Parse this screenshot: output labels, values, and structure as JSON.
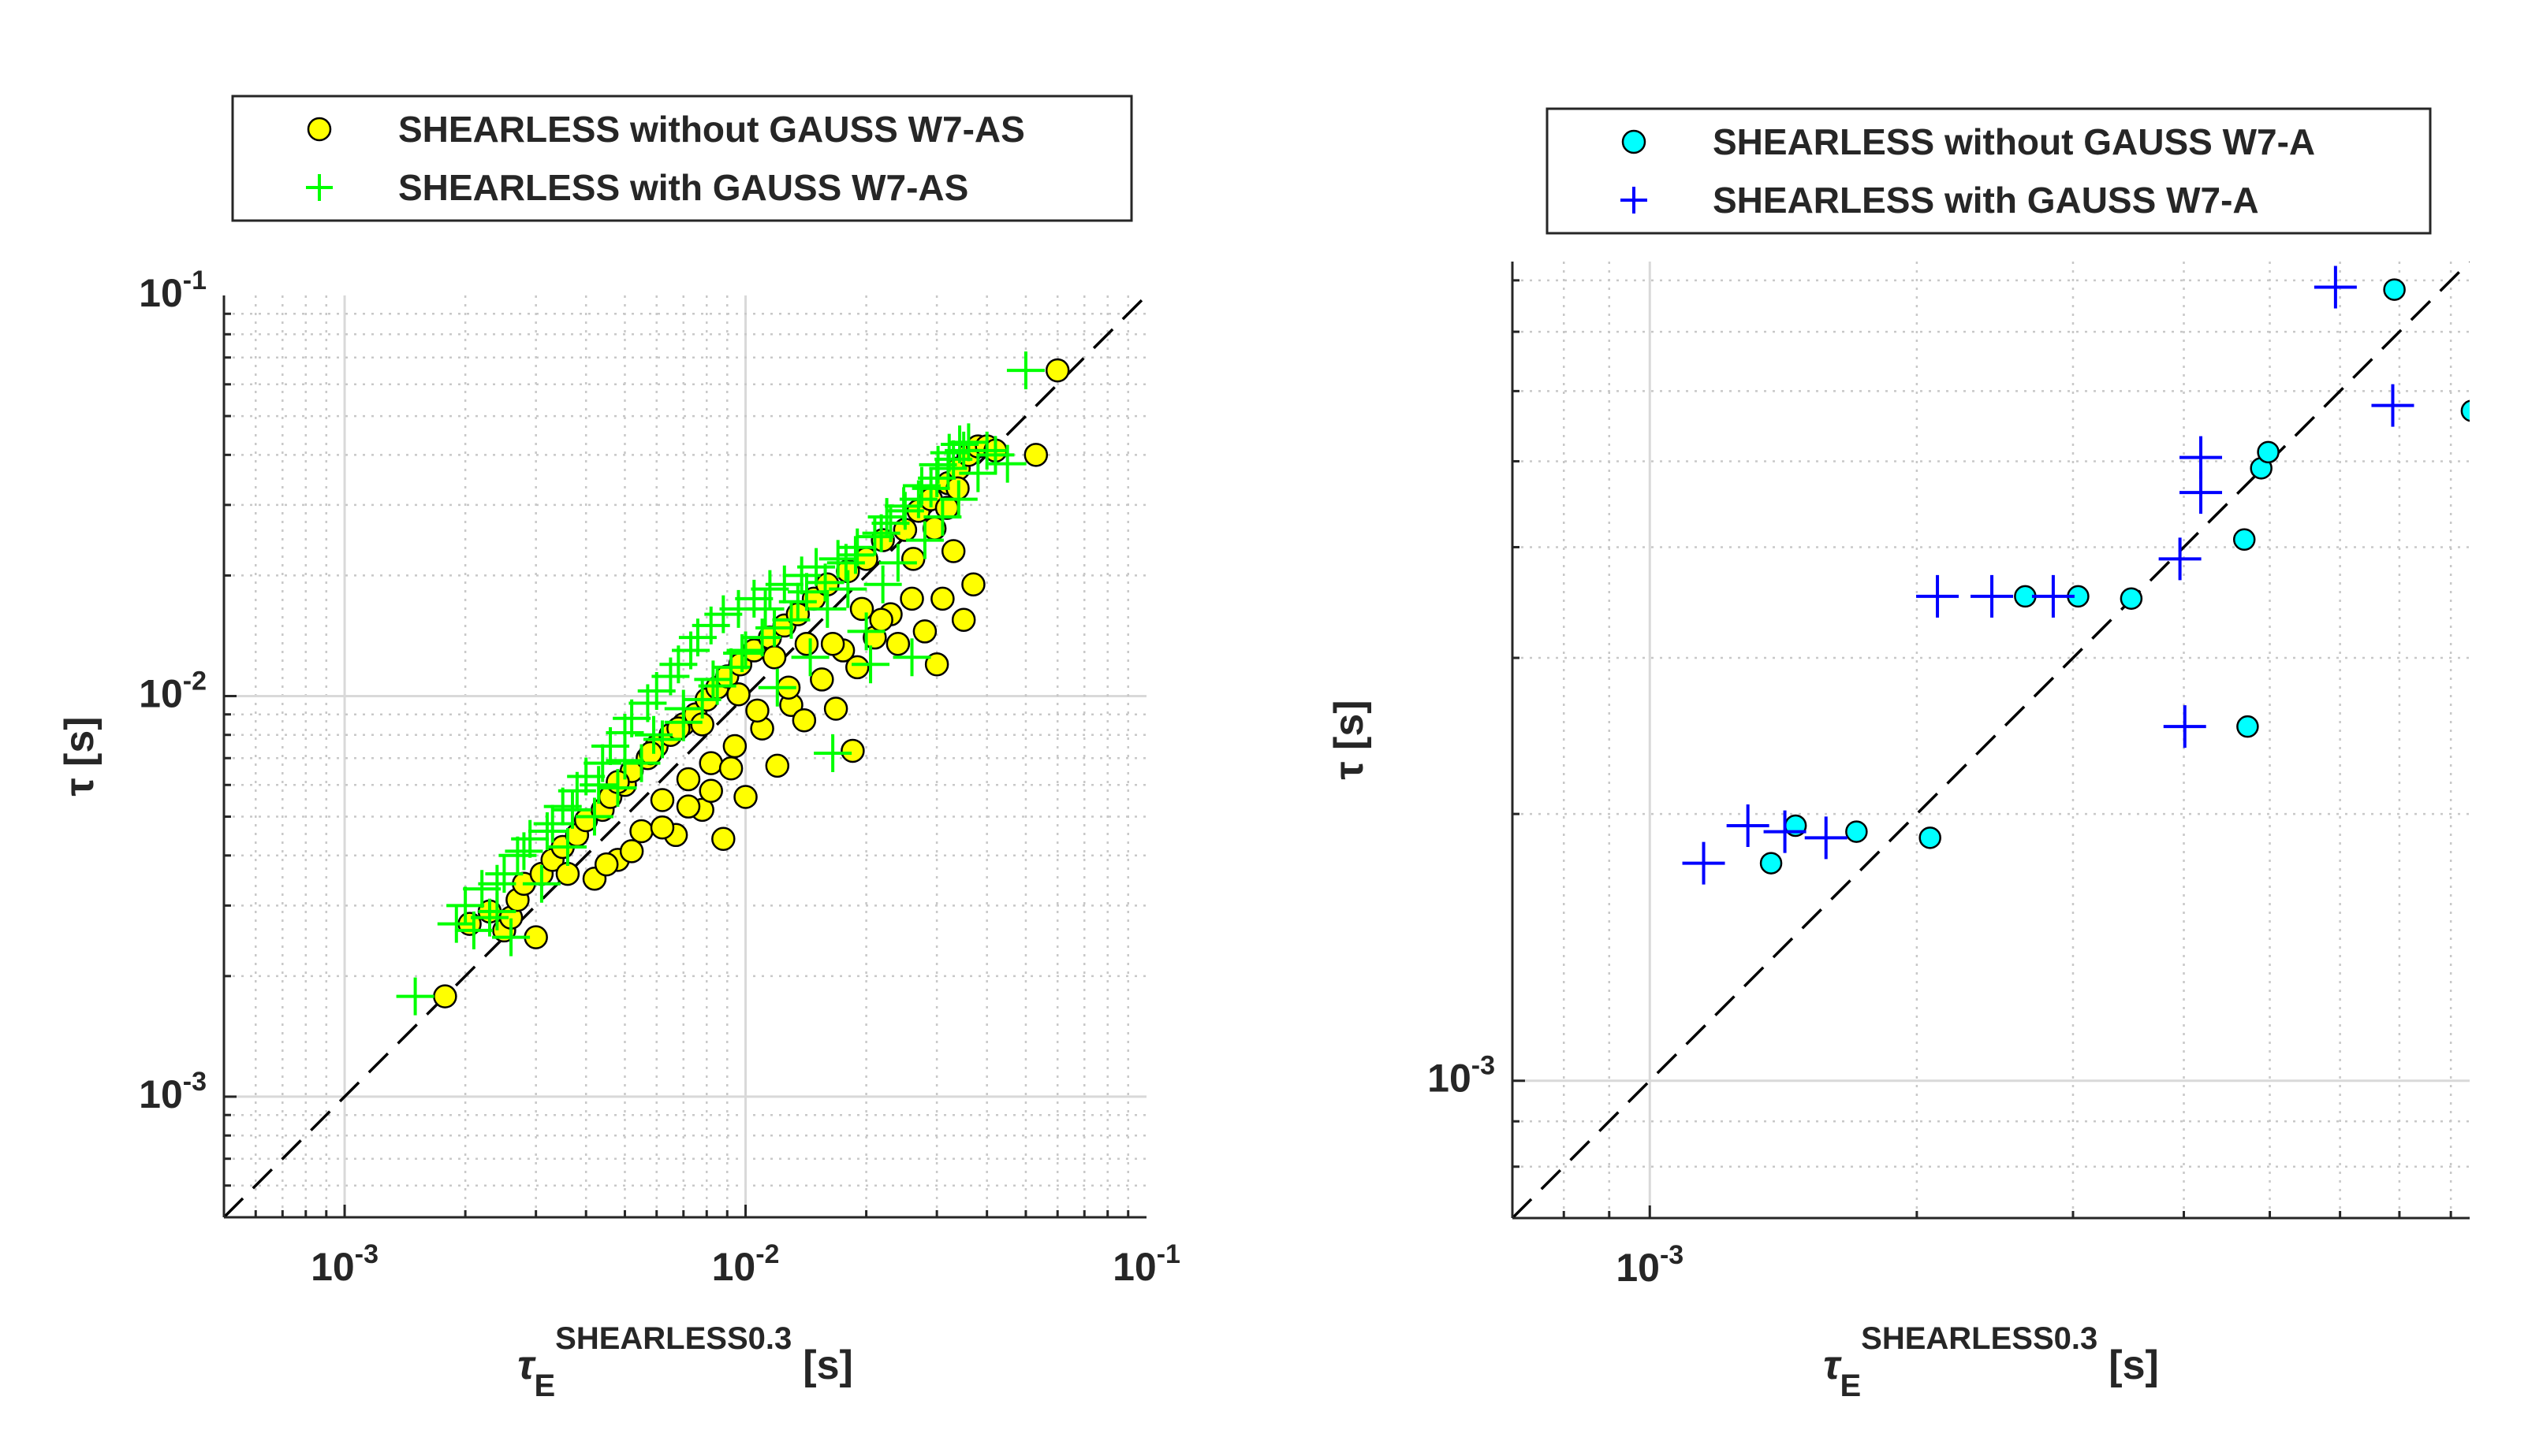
{
  "colors": {
    "yellow_marker": "#ffff00",
    "green_marker": "#00ff00",
    "cyan_marker": "#00ffff",
    "blue_marker": "#0000ff",
    "axis": "#262626",
    "identity_line": "#000000"
  },
  "chart_data": [
    {
      "type": "scatter",
      "scale": "log-log",
      "xlabel": "τ",
      "xlabel_sub": "E",
      "xlabel_sup": "SHEARLESS0.3",
      "xlabel_unit": "[s]",
      "ylabel": "τ [s]",
      "xlim": [
        0.0005,
        0.1
      ],
      "ylim": [
        0.0005,
        0.1
      ],
      "x_ticks": [
        0.001,
        0.01,
        0.1
      ],
      "y_ticks": [
        0.001,
        0.01,
        0.1
      ],
      "x_tick_labels": [
        {
          "base": "10",
          "exp": "-3"
        },
        {
          "base": "10",
          "exp": "-2"
        },
        {
          "base": "10",
          "exp": "-1"
        }
      ],
      "y_tick_labels": [
        {
          "base": "10",
          "exp": "-3"
        },
        {
          "base": "10",
          "exp": "-2"
        },
        {
          "base": "10",
          "exp": "-1"
        }
      ],
      "grid": true,
      "minor_grid": true,
      "identity_line": true,
      "legend_position": "above-top",
      "series": [
        {
          "name": "SHEARLESS without GAUSS W7-AS",
          "marker": "circle",
          "color": "#ffff00",
          "points": [
            [
              0.00178,
              0.00178
            ],
            [
              0.00205,
              0.0027
            ],
            [
              0.0023,
              0.0029
            ],
            [
              0.0025,
              0.0026
            ],
            [
              0.0026,
              0.0028
            ],
            [
              0.0027,
              0.0031
            ],
            [
              0.0028,
              0.0034
            ],
            [
              0.003,
              0.0025
            ],
            [
              0.0031,
              0.0036
            ],
            [
              0.0033,
              0.0039
            ],
            [
              0.0035,
              0.0042
            ],
            [
              0.0036,
              0.0036
            ],
            [
              0.0038,
              0.0045
            ],
            [
              0.004,
              0.0049
            ],
            [
              0.0042,
              0.0035
            ],
            [
              0.0044,
              0.0052
            ],
            [
              0.0046,
              0.0056
            ],
            [
              0.0048,
              0.0039
            ],
            [
              0.005,
              0.006
            ],
            [
              0.0052,
              0.0065
            ],
            [
              0.0055,
              0.0046
            ],
            [
              0.0057,
              0.007
            ],
            [
              0.006,
              0.0075
            ],
            [
              0.0062,
              0.0055
            ],
            [
              0.0065,
              0.008
            ],
            [
              0.0067,
              0.0045
            ],
            [
              0.007,
              0.0085
            ],
            [
              0.0072,
              0.0062
            ],
            [
              0.0075,
              0.009
            ],
            [
              0.0078,
              0.0052
            ],
            [
              0.008,
              0.0098
            ],
            [
              0.0082,
              0.0068
            ],
            [
              0.0085,
              0.0105
            ],
            [
              0.0088,
              0.0044
            ],
            [
              0.009,
              0.0112
            ],
            [
              0.0094,
              0.0075
            ],
            [
              0.0097,
              0.012
            ],
            [
              0.01,
              0.0056
            ],
            [
              0.0105,
              0.013
            ],
            [
              0.011,
              0.0083
            ],
            [
              0.0115,
              0.014
            ],
            [
              0.012,
              0.0067
            ],
            [
              0.0125,
              0.015
            ],
            [
              0.013,
              0.0095
            ],
            [
              0.0135,
              0.016
            ],
            [
              0.014,
              0.0087
            ],
            [
              0.0148,
              0.0175
            ],
            [
              0.0155,
              0.011
            ],
            [
              0.016,
              0.019
            ],
            [
              0.0168,
              0.0093
            ],
            [
              0.0175,
              0.013
            ],
            [
              0.018,
              0.0205
            ],
            [
              0.0185,
              0.0073
            ],
            [
              0.019,
              0.0118
            ],
            [
              0.02,
              0.022
            ],
            [
              0.021,
              0.014
            ],
            [
              0.022,
              0.0245
            ],
            [
              0.023,
              0.016
            ],
            [
              0.024,
              0.0135
            ],
            [
              0.025,
              0.026
            ],
            [
              0.026,
              0.0175
            ],
            [
              0.027,
              0.029
            ],
            [
              0.028,
              0.0145
            ],
            [
              0.029,
              0.031
            ],
            [
              0.03,
              0.012
            ],
            [
              0.031,
              0.0175
            ],
            [
              0.032,
              0.034
            ],
            [
              0.033,
              0.023
            ],
            [
              0.034,
              0.037
            ],
            [
              0.035,
              0.0155
            ],
            [
              0.036,
              0.04
            ],
            [
              0.037,
              0.019
            ],
            [
              0.038,
              0.042
            ],
            [
              0.04,
              0.042
            ],
            [
              0.042,
              0.041
            ],
            [
              0.053,
              0.04
            ],
            [
              0.06,
              0.065
            ],
            [
              0.0218,
              0.0155
            ],
            [
              0.0165,
              0.0135
            ],
            [
              0.0128,
              0.0105
            ],
            [
              0.0107,
              0.0092
            ],
            [
              0.0092,
              0.0066
            ],
            [
              0.0082,
              0.0058
            ],
            [
              0.0072,
              0.0053
            ],
            [
              0.0062,
              0.0047
            ],
            [
              0.0052,
              0.0041
            ],
            [
              0.0045,
              0.0038
            ],
            [
              0.0048,
              0.0061
            ],
            [
              0.0058,
              0.0072
            ],
            [
              0.0068,
              0.0083
            ],
            [
              0.0078,
              0.0085
            ],
            [
              0.0096,
              0.0101
            ],
            [
              0.0118,
              0.0125
            ],
            [
              0.0142,
              0.0135
            ],
            [
              0.0195,
              0.0165
            ],
            [
              0.0262,
              0.022
            ],
            [
              0.0296,
              0.0262
            ],
            [
              0.0318,
              0.0295
            ],
            [
              0.0338,
              0.033
            ]
          ]
        },
        {
          "name": "SHEARLESS with GAUSS W7-AS",
          "marker": "plus",
          "color": "#00ff00",
          "points": [
            [
              0.0015,
              0.00178
            ],
            [
              0.0019,
              0.0027
            ],
            [
              0.002,
              0.003
            ],
            [
              0.0021,
              0.0026
            ],
            [
              0.0022,
              0.0033
            ],
            [
              0.0024,
              0.0029
            ],
            [
              0.0025,
              0.0036
            ],
            [
              0.0026,
              0.0025
            ],
            [
              0.0027,
              0.004
            ],
            [
              0.0029,
              0.0044
            ],
            [
              0.0031,
              0.0034
            ],
            [
              0.0033,
              0.0048
            ],
            [
              0.0035,
              0.0053
            ],
            [
              0.0036,
              0.0042
            ],
            [
              0.0038,
              0.0058
            ],
            [
              0.004,
              0.0063
            ],
            [
              0.0042,
              0.005
            ],
            [
              0.0044,
              0.0068
            ],
            [
              0.0046,
              0.0075
            ],
            [
              0.0048,
              0.0059
            ],
            [
              0.005,
              0.0081
            ],
            [
              0.0052,
              0.0088
            ],
            [
              0.0055,
              0.0068
            ],
            [
              0.0057,
              0.0096
            ],
            [
              0.006,
              0.0103
            ],
            [
              0.0062,
              0.0078
            ],
            [
              0.0065,
              0.0112
            ],
            [
              0.0068,
              0.012
            ],
            [
              0.007,
              0.0086
            ],
            [
              0.0073,
              0.013
            ],
            [
              0.0076,
              0.014
            ],
            [
              0.0078,
              0.0098
            ],
            [
              0.0082,
              0.015
            ],
            [
              0.0085,
              0.0106
            ],
            [
              0.0088,
              0.016
            ],
            [
              0.0092,
              0.0118
            ],
            [
              0.0096,
              0.0165
            ],
            [
              0.01,
              0.013
            ],
            [
              0.0105,
              0.0175
            ],
            [
              0.011,
              0.014
            ],
            [
              0.0115,
              0.0185
            ],
            [
              0.012,
              0.0105
            ],
            [
              0.0125,
              0.019
            ],
            [
              0.013,
              0.0155
            ],
            [
              0.0138,
              0.02
            ],
            [
              0.0145,
              0.0125
            ],
            [
              0.015,
              0.021
            ],
            [
              0.016,
              0.0165
            ],
            [
              0.0165,
              0.0072
            ],
            [
              0.017,
              0.022
            ],
            [
              0.018,
              0.0185
            ],
            [
              0.019,
              0.0235
            ],
            [
              0.02,
              0.0145
            ],
            [
              0.0205,
              0.012
            ],
            [
              0.021,
              0.025
            ],
            [
              0.022,
              0.019
            ],
            [
              0.023,
              0.027
            ],
            [
              0.024,
              0.0215
            ],
            [
              0.025,
              0.029
            ],
            [
              0.026,
              0.0125
            ],
            [
              0.027,
              0.031
            ],
            [
              0.028,
              0.0245
            ],
            [
              0.029,
              0.033
            ],
            [
              0.03,
              0.035
            ],
            [
              0.031,
              0.028
            ],
            [
              0.032,
              0.037
            ],
            [
              0.033,
              0.039
            ],
            [
              0.034,
              0.031
            ],
            [
              0.035,
              0.041
            ],
            [
              0.036,
              0.043
            ],
            [
              0.038,
              0.036
            ],
            [
              0.04,
              0.041
            ],
            [
              0.042,
              0.04
            ],
            [
              0.045,
              0.038
            ],
            [
              0.05,
              0.065
            ],
            [
              0.0225,
              0.028
            ],
            [
              0.0178,
              0.0215
            ],
            [
              0.0142,
              0.0182
            ],
            [
              0.0118,
              0.0148
            ],
            [
              0.0098,
              0.0128
            ],
            [
              0.0083,
              0.011
            ],
            [
              0.007,
              0.0093
            ],
            [
              0.0059,
              0.008
            ],
            [
              0.005,
              0.0069
            ],
            [
              0.0043,
              0.006
            ],
            [
              0.0037,
              0.0052
            ],
            [
              0.0032,
              0.0046
            ],
            [
              0.0028,
              0.0041
            ],
            [
              0.0024,
              0.0034
            ],
            [
              0.0023,
              0.0028
            ],
            [
              0.0112,
              0.0165
            ],
            [
              0.0135,
              0.0172
            ],
            [
              0.0158,
              0.0192
            ],
            [
              0.0188,
              0.0225
            ],
            [
              0.0218,
              0.0255
            ],
            [
              0.0248,
              0.0298
            ],
            [
              0.0275,
              0.0335
            ],
            [
              0.0302,
              0.0378
            ],
            [
              0.0322,
              0.0405
            ],
            [
              0.0342,
              0.0425
            ]
          ]
        }
      ]
    },
    {
      "type": "scatter",
      "scale": "log-log",
      "xlabel": "τ",
      "xlabel_sub": "E",
      "xlabel_sup": "SHEARLESS0.3",
      "xlabel_unit": "[s]",
      "ylabel": "τ [s]",
      "xlim": [
        0.0007,
        0.0084
      ],
      "ylim": [
        0.0007,
        0.0084
      ],
      "x_ticks": [
        0.001
      ],
      "y_ticks": [
        0.001
      ],
      "x_tick_labels": [
        {
          "base": "10",
          "exp": "-3"
        }
      ],
      "y_tick_labels": [
        {
          "base": "10",
          "exp": "-3"
        }
      ],
      "grid": true,
      "minor_grid": true,
      "identity_line": true,
      "legend_position": "above-top",
      "series": [
        {
          "name": "SHEARLESS without GAUSS W7-A",
          "marker": "circle",
          "color": "#00ffff",
          "points": [
            [
              0.00137,
              0.00176
            ],
            [
              0.00146,
              0.00194
            ],
            [
              0.00171,
              0.00191
            ],
            [
              0.00207,
              0.00188
            ],
            [
              0.00265,
              0.00352
            ],
            [
              0.00304,
              0.00352
            ],
            [
              0.00349,
              0.0035
            ],
            [
              0.00472,
              0.00251
            ],
            [
              0.00468,
              0.00408
            ],
            [
              0.00489,
              0.00491
            ],
            [
              0.00498,
              0.00512
            ],
            [
              0.00691,
              0.00781
            ],
            [
              0.00845,
              0.0057
            ]
          ]
        },
        {
          "name": "SHEARLESS with GAUSS W7-A",
          "marker": "plus",
          "color": "#0000ff",
          "points": [
            [
              0.00115,
              0.00176
            ],
            [
              0.00129,
              0.00194
            ],
            [
              0.00142,
              0.00191
            ],
            [
              0.00158,
              0.00188
            ],
            [
              0.00211,
              0.00352
            ],
            [
              0.00243,
              0.00352
            ],
            [
              0.00285,
              0.00352
            ],
            [
              0.00401,
              0.00251
            ],
            [
              0.00396,
              0.00388
            ],
            [
              0.00418,
              0.00461
            ],
            [
              0.00418,
              0.00505
            ],
            [
              0.00593,
              0.00786
            ],
            [
              0.00688,
              0.00578
            ]
          ]
        }
      ]
    }
  ]
}
